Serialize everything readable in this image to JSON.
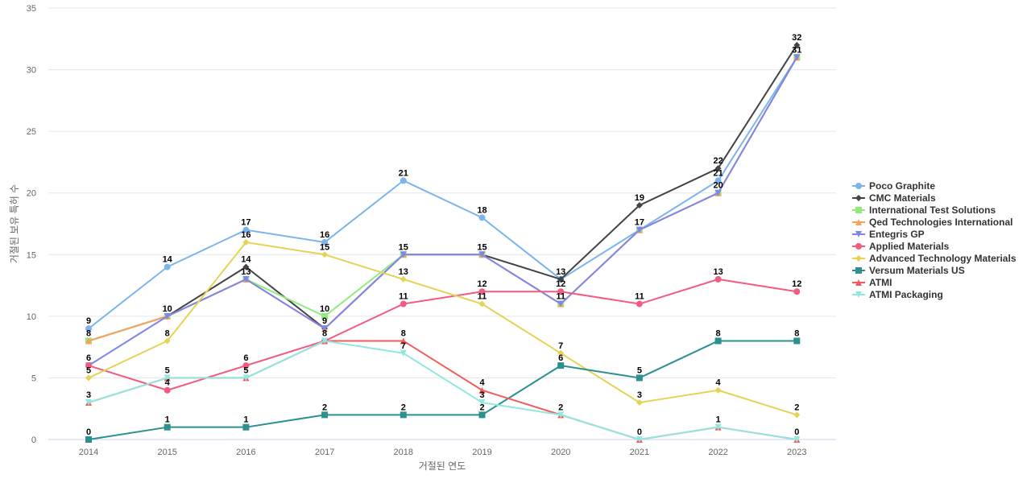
{
  "chart_data": {
    "type": "line",
    "title": "",
    "xlabel": "거절된 연도",
    "ylabel": "거절된 보유 특허 수",
    "x": [
      2014,
      2015,
      2016,
      2017,
      2018,
      2019,
      2020,
      2021,
      2022,
      2023
    ],
    "ylim": [
      0,
      35
    ],
    "yticks": [
      0,
      5,
      10,
      15,
      20,
      25,
      30,
      35
    ],
    "grid": true,
    "legend_position": "right",
    "series": [
      {
        "name": "Poco Graphite",
        "color": "#7cb5ec",
        "marker": "circle",
        "values": [
          9,
          14,
          17,
          16,
          21,
          18,
          13,
          17,
          21,
          31
        ]
      },
      {
        "name": "CMC Materials",
        "color": "#434348",
        "marker": "diamond",
        "values": [
          8,
          10,
          14,
          9,
          15,
          15,
          13,
          19,
          22,
          32
        ]
      },
      {
        "name": "International Test Solutions",
        "color": "#90ed7d",
        "marker": "square",
        "values": [
          8,
          10,
          13,
          10,
          15,
          15,
          11,
          17,
          20,
          31
        ]
      },
      {
        "name": "Qed Technologies International",
        "color": "#f7a35c",
        "marker": "triangle",
        "values": [
          8,
          10,
          13,
          9,
          15,
          15,
          11,
          17,
          20,
          31
        ]
      },
      {
        "name": "Entegris GP",
        "color": "#8085e9",
        "marker": "triangle-down",
        "values": [
          6,
          10,
          13,
          9,
          15,
          15,
          11,
          17,
          20,
          31
        ]
      },
      {
        "name": "Applied Materials",
        "color": "#f15c80",
        "marker": "circle",
        "values": [
          6,
          4,
          6,
          8,
          11,
          12,
          12,
          11,
          13,
          12
        ]
      },
      {
        "name": "Advanced Technology Materials",
        "color": "#e4d354",
        "marker": "diamond",
        "values": [
          5,
          8,
          16,
          15,
          13,
          11,
          7,
          3,
          4,
          2
        ]
      },
      {
        "name": "Versum Materials US",
        "color": "#2b908f",
        "marker": "square",
        "values": [
          0,
          1,
          1,
          2,
          2,
          2,
          6,
          5,
          8,
          8
        ]
      },
      {
        "name": "ATMI",
        "color": "#f45b5b",
        "marker": "triangle",
        "values": [
          3,
          5,
          5,
          8,
          8,
          4,
          2,
          0,
          1,
          0
        ]
      },
      {
        "name": "ATMI Packaging",
        "color": "#91e8e1",
        "marker": "triangle-down",
        "values": [
          3,
          5,
          5,
          8,
          7,
          3,
          2,
          0,
          1,
          0
        ]
      }
    ],
    "data_labels": [
      {
        "x": 2014,
        "text": "9",
        "y": 9
      },
      {
        "x": 2014,
        "text": "8",
        "y": 8
      },
      {
        "x": 2014,
        "text": "6",
        "y": 6
      },
      {
        "x": 2014,
        "text": "5",
        "y": 5
      },
      {
        "x": 2014,
        "text": "3",
        "y": 3
      },
      {
        "x": 2014,
        "text": "0",
        "y": 0
      },
      {
        "x": 2015,
        "text": "14",
        "y": 14
      },
      {
        "x": 2015,
        "text": "10",
        "y": 10
      },
      {
        "x": 2015,
        "text": "8",
        "y": 8
      },
      {
        "x": 2015,
        "text": "5",
        "y": 5
      },
      {
        "x": 2015,
        "text": "4",
        "y": 4
      },
      {
        "x": 2015,
        "text": "1",
        "y": 1
      },
      {
        "x": 2016,
        "text": "17",
        "y": 17
      },
      {
        "x": 2016,
        "text": "16",
        "y": 16
      },
      {
        "x": 2016,
        "text": "14",
        "y": 14
      },
      {
        "x": 2016,
        "text": "13",
        "y": 13
      },
      {
        "x": 2016,
        "text": "6",
        "y": 6
      },
      {
        "x": 2016,
        "text": "5",
        "y": 5
      },
      {
        "x": 2016,
        "text": "1",
        "y": 1
      },
      {
        "x": 2017,
        "text": "16",
        "y": 16
      },
      {
        "x": 2017,
        "text": "15",
        "y": 15
      },
      {
        "x": 2017,
        "text": "10",
        "y": 10
      },
      {
        "x": 2017,
        "text": "9",
        "y": 9
      },
      {
        "x": 2017,
        "text": "8",
        "y": 8
      },
      {
        "x": 2017,
        "text": "2",
        "y": 2
      },
      {
        "x": 2018,
        "text": "21",
        "y": 21
      },
      {
        "x": 2018,
        "text": "15",
        "y": 15
      },
      {
        "x": 2018,
        "text": "13",
        "y": 13
      },
      {
        "x": 2018,
        "text": "11",
        "y": 11
      },
      {
        "x": 2018,
        "text": "8",
        "y": 8
      },
      {
        "x": 2018,
        "text": "7",
        "y": 7
      },
      {
        "x": 2018,
        "text": "2",
        "y": 2
      },
      {
        "x": 2019,
        "text": "18",
        "y": 18
      },
      {
        "x": 2019,
        "text": "15",
        "y": 15
      },
      {
        "x": 2019,
        "text": "12",
        "y": 12
      },
      {
        "x": 2019,
        "text": "11",
        "y": 11
      },
      {
        "x": 2019,
        "text": "4",
        "y": 4
      },
      {
        "x": 2019,
        "text": "3",
        "y": 3
      },
      {
        "x": 2019,
        "text": "2",
        "y": 2
      },
      {
        "x": 2020,
        "text": "13",
        "y": 13
      },
      {
        "x": 2020,
        "text": "12",
        "y": 12
      },
      {
        "x": 2020,
        "text": "11",
        "y": 11
      },
      {
        "x": 2020,
        "text": "7",
        "y": 7
      },
      {
        "x": 2020,
        "text": "6",
        "y": 6
      },
      {
        "x": 2020,
        "text": "2",
        "y": 2
      },
      {
        "x": 2021,
        "text": "19",
        "y": 19
      },
      {
        "x": 2021,
        "text": "17",
        "y": 17
      },
      {
        "x": 2021,
        "text": "11",
        "y": 11
      },
      {
        "x": 2021,
        "text": "5",
        "y": 5
      },
      {
        "x": 2021,
        "text": "3",
        "y": 3
      },
      {
        "x": 2021,
        "text": "0",
        "y": 0
      },
      {
        "x": 2022,
        "text": "22",
        "y": 22
      },
      {
        "x": 2022,
        "text": "21",
        "y": 21
      },
      {
        "x": 2022,
        "text": "20",
        "y": 20
      },
      {
        "x": 2022,
        "text": "13",
        "y": 13
      },
      {
        "x": 2022,
        "text": "8",
        "y": 8
      },
      {
        "x": 2022,
        "text": "4",
        "y": 4
      },
      {
        "x": 2022,
        "text": "1",
        "y": 1
      },
      {
        "x": 2023,
        "text": "32",
        "y": 32
      },
      {
        "x": 2023,
        "text": "31",
        "y": 31
      },
      {
        "x": 2023,
        "text": "12",
        "y": 12
      },
      {
        "x": 2023,
        "text": "8",
        "y": 8
      },
      {
        "x": 2023,
        "text": "2",
        "y": 2
      },
      {
        "x": 2023,
        "text": "0",
        "y": 0
      }
    ],
    "colors": {
      "grid": "#e6e6e6",
      "axis_text": "#666666",
      "data_label": "#000000",
      "legend_text": "#333333"
    }
  }
}
